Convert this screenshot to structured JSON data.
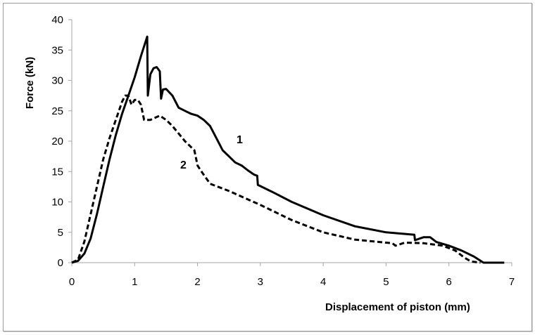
{
  "chart_data": {
    "type": "line",
    "title": "",
    "xlabel": "Displacement of piston (mm)",
    "ylabel": "Force (kN)",
    "xlim": [
      0,
      7
    ],
    "ylim": [
      0,
      40
    ],
    "x_ticks": [
      0,
      1,
      2,
      3,
      4,
      5,
      6,
      7
    ],
    "y_ticks": [
      0,
      5,
      10,
      15,
      20,
      25,
      30,
      35,
      40
    ],
    "grid": false,
    "legend": "none (curves labeled inline '1' and '2')",
    "series": [
      {
        "name": "1",
        "style": "solid",
        "color": "#000000",
        "label_pos": [
          2.68,
          20.3
        ],
        "points": [
          [
            0,
            0
          ],
          [
            0.1,
            0.3
          ],
          [
            0.2,
            1.5
          ],
          [
            0.3,
            4
          ],
          [
            0.4,
            8
          ],
          [
            0.5,
            12.5
          ],
          [
            0.6,
            17
          ],
          [
            0.7,
            21
          ],
          [
            0.8,
            24.5
          ],
          [
            0.9,
            27.5
          ],
          [
            1.0,
            30.5
          ],
          [
            1.1,
            34
          ],
          [
            1.2,
            37.2
          ],
          [
            1.21,
            27.5
          ],
          [
            1.25,
            31
          ],
          [
            1.3,
            32
          ],
          [
            1.35,
            32.2
          ],
          [
            1.4,
            31.5
          ],
          [
            1.42,
            27
          ],
          [
            1.45,
            28.5
          ],
          [
            1.5,
            28.6
          ],
          [
            1.6,
            27.5
          ],
          [
            1.7,
            25.5
          ],
          [
            1.8,
            25
          ],
          [
            1.9,
            24.5
          ],
          [
            2.0,
            24.2
          ],
          [
            2.1,
            23.5
          ],
          [
            2.2,
            22.5
          ],
          [
            2.3,
            20.5
          ],
          [
            2.4,
            18.5
          ],
          [
            2.5,
            17.5
          ],
          [
            2.6,
            16.5
          ],
          [
            2.7,
            16
          ],
          [
            2.8,
            15.2
          ],
          [
            2.9,
            14.5
          ],
          [
            2.95,
            14.3
          ],
          [
            2.96,
            12.8
          ],
          [
            3.0,
            12.6
          ],
          [
            3.2,
            11.6
          ],
          [
            3.5,
            10
          ],
          [
            4.0,
            7.8
          ],
          [
            4.5,
            6
          ],
          [
            5.0,
            5
          ],
          [
            5.45,
            4.6
          ],
          [
            5.46,
            3.7
          ],
          [
            5.6,
            4.2
          ],
          [
            5.7,
            4.2
          ],
          [
            5.8,
            3.4
          ],
          [
            6.0,
            2.8
          ],
          [
            6.2,
            2
          ],
          [
            6.4,
            1
          ],
          [
            6.55,
            0
          ],
          [
            6.88,
            0
          ]
        ]
      },
      {
        "name": "2",
        "style": "dashed",
        "color": "#000000",
        "label_pos": [
          1.79,
          16.3
        ],
        "points": [
          [
            0,
            0
          ],
          [
            0.1,
            0.5
          ],
          [
            0.2,
            3.5
          ],
          [
            0.3,
            8
          ],
          [
            0.4,
            12.5
          ],
          [
            0.5,
            17
          ],
          [
            0.6,
            20.5
          ],
          [
            0.7,
            23.5
          ],
          [
            0.8,
            26.5
          ],
          [
            0.85,
            27.5
          ],
          [
            0.9,
            27.5
          ],
          [
            0.95,
            26
          ],
          [
            1.0,
            26.8
          ],
          [
            1.05,
            26.8
          ],
          [
            1.1,
            26
          ],
          [
            1.15,
            23.5
          ],
          [
            1.25,
            23.5
          ],
          [
            1.4,
            24.2
          ],
          [
            1.5,
            23.5
          ],
          [
            1.6,
            22.5
          ],
          [
            1.8,
            20
          ],
          [
            1.95,
            18.5
          ],
          [
            2.0,
            16
          ],
          [
            2.05,
            15.2
          ],
          [
            2.2,
            13
          ],
          [
            2.5,
            11.8
          ],
          [
            3.0,
            9.5
          ],
          [
            3.5,
            7
          ],
          [
            4.0,
            5
          ],
          [
            4.5,
            3.8
          ],
          [
            5.0,
            3.3
          ],
          [
            5.1,
            3.2
          ],
          [
            5.15,
            2.8
          ],
          [
            5.3,
            3.3
          ],
          [
            5.6,
            3.2
          ],
          [
            5.9,
            2.8
          ],
          [
            6.1,
            2
          ],
          [
            6.25,
            0.8
          ],
          [
            6.35,
            0.2
          ],
          [
            6.5,
            0
          ]
        ]
      }
    ]
  },
  "labels": {
    "xlabel": "Displacement of piston (mm)",
    "ylabel": "Force (kN)",
    "curve1": "1",
    "curve2": "2"
  }
}
